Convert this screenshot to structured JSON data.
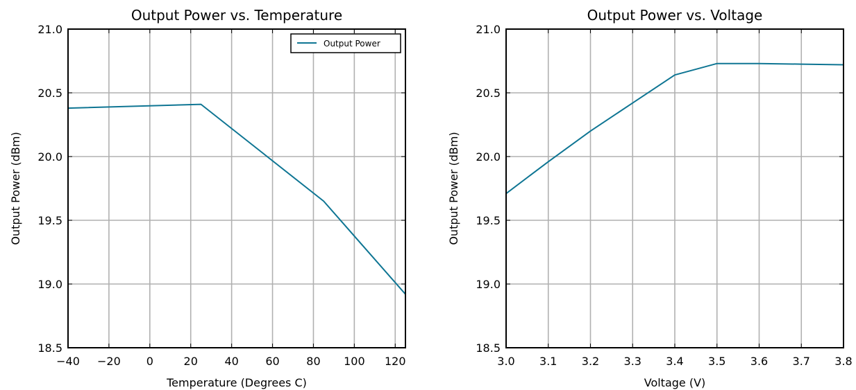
{
  "chart_data": [
    {
      "type": "line",
      "title": "Output Power vs. Temperature",
      "xlabel": "Temperature (Degrees C)",
      "ylabel": "Output Power (dBm)",
      "xlim": [
        -40,
        125
      ],
      "ylim": [
        18.5,
        21.0
      ],
      "xticks": [
        -40,
        -20,
        0,
        20,
        40,
        60,
        80,
        100,
        120
      ],
      "xtick_labels": [
        "−40",
        "−20",
        "0",
        "20",
        "40",
        "60",
        "80",
        "100",
        "120"
      ],
      "yticks": [
        18.5,
        19.0,
        19.5,
        20.0,
        20.5,
        21.0
      ],
      "ytick_labels": [
        "18.5",
        "19.0",
        "19.5",
        "20.0",
        "20.5",
        "21.0"
      ],
      "grid": true,
      "legend": {
        "position": "top-right",
        "entries": [
          "Output Power"
        ]
      },
      "series": [
        {
          "name": "Output Power",
          "color": "#0e7593",
          "x": [
            -40,
            25,
            85,
            125
          ],
          "y": [
            20.38,
            20.41,
            19.65,
            18.92
          ]
        }
      ]
    },
    {
      "type": "line",
      "title": "Output Power vs. Voltage",
      "xlabel": "Voltage (V)",
      "ylabel": "Output Power (dBm)",
      "xlim": [
        3.0,
        3.8
      ],
      "ylim": [
        18.5,
        21.0
      ],
      "xticks": [
        3.0,
        3.1,
        3.2,
        3.3,
        3.4,
        3.5,
        3.6,
        3.7,
        3.8
      ],
      "xtick_labels": [
        "3.0",
        "3.1",
        "3.2",
        "3.3",
        "3.4",
        "3.5",
        "3.6",
        "3.7",
        "3.8"
      ],
      "yticks": [
        18.5,
        19.0,
        19.5,
        20.0,
        20.5,
        21.0
      ],
      "ytick_labels": [
        "18.5",
        "19.0",
        "19.5",
        "20.0",
        "20.5",
        "21.0"
      ],
      "grid": true,
      "legend": null,
      "series": [
        {
          "color": "#0e7593",
          "x": [
            3.0,
            3.1,
            3.2,
            3.3,
            3.4,
            3.5,
            3.6,
            3.7,
            3.8
          ],
          "y": [
            19.71,
            19.96,
            20.2,
            20.42,
            20.64,
            20.73,
            20.73,
            20.725,
            20.72
          ]
        }
      ]
    }
  ]
}
